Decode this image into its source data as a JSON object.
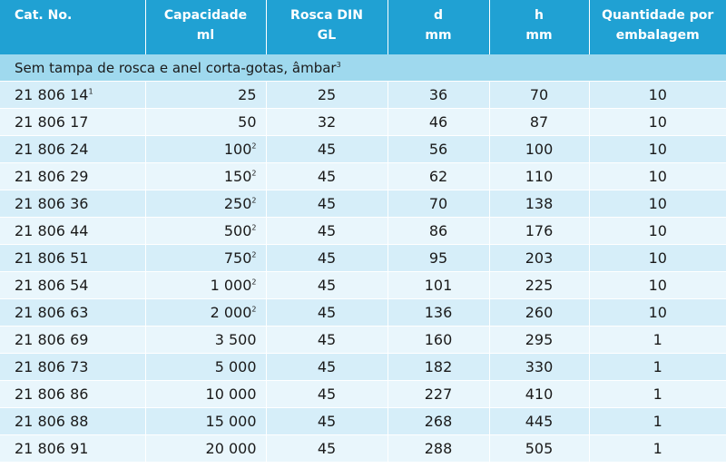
{
  "headers": {
    "cat": "Cat. No.",
    "cap_line1": "Capacidade",
    "cap_line2": "ml",
    "rosca_line1": "Rosca DIN",
    "rosca_line2": "GL",
    "d_line1": "d",
    "d_line2": "mm",
    "h_line1": "h",
    "h_line2": "mm",
    "qty_line1": "Quantidade por",
    "qty_line2": "embalagem"
  },
  "group": {
    "text": "Sem tampa de rosca e anel corta-gotas, âmbar",
    "note": "3"
  },
  "rows": [
    {
      "cat": "21 806 14",
      "cat_note": "1",
      "cap": "25",
      "cap_note": "",
      "rosca": "25",
      "d": "36",
      "h": "70",
      "qty": "10"
    },
    {
      "cat": "21 806 17",
      "cat_note": "",
      "cap": "50",
      "cap_note": "",
      "rosca": "32",
      "d": "46",
      "h": "87",
      "qty": "10"
    },
    {
      "cat": "21 806 24",
      "cat_note": "",
      "cap": "100",
      "cap_note": "2",
      "rosca": "45",
      "d": "56",
      "h": "100",
      "qty": "10"
    },
    {
      "cat": "21 806 29",
      "cat_note": "",
      "cap": "150",
      "cap_note": "2",
      "rosca": "45",
      "d": "62",
      "h": "110",
      "qty": "10"
    },
    {
      "cat": "21 806 36",
      "cat_note": "",
      "cap": "250",
      "cap_note": "2",
      "rosca": "45",
      "d": "70",
      "h": "138",
      "qty": "10"
    },
    {
      "cat": "21 806 44",
      "cat_note": "",
      "cap": "500",
      "cap_note": "2",
      "rosca": "45",
      "d": "86",
      "h": "176",
      "qty": "10"
    },
    {
      "cat": "21 806 51",
      "cat_note": "",
      "cap": "750",
      "cap_note": "2",
      "rosca": "45",
      "d": "95",
      "h": "203",
      "qty": "10"
    },
    {
      "cat": "21 806 54",
      "cat_note": "",
      "cap": "1 000",
      "cap_note": "2",
      "rosca": "45",
      "d": "101",
      "h": "225",
      "qty": "10"
    },
    {
      "cat": "21 806 63",
      "cat_note": "",
      "cap": "2 000",
      "cap_note": "2",
      "rosca": "45",
      "d": "136",
      "h": "260",
      "qty": "10"
    },
    {
      "cat": "21 806 69",
      "cat_note": "",
      "cap": "3 500",
      "cap_note": "",
      "rosca": "45",
      "d": "160",
      "h": "295",
      "qty": "1"
    },
    {
      "cat": "21 806 73",
      "cat_note": "",
      "cap": "5 000",
      "cap_note": "",
      "rosca": "45",
      "d": "182",
      "h": "330",
      "qty": "1"
    },
    {
      "cat": "21 806 86",
      "cat_note": "",
      "cap": "10 000",
      "cap_note": "",
      "rosca": "45",
      "d": "227",
      "h": "410",
      "qty": "1"
    },
    {
      "cat": "21 806 88",
      "cat_note": "",
      "cap": "15 000",
      "cap_note": "",
      "rosca": "45",
      "d": "268",
      "h": "445",
      "qty": "1"
    },
    {
      "cat": "21 806 91",
      "cat_note": "",
      "cap": "20 000",
      "cap_note": "",
      "rosca": "45",
      "d": "288",
      "h": "505",
      "qty": "1"
    }
  ]
}
